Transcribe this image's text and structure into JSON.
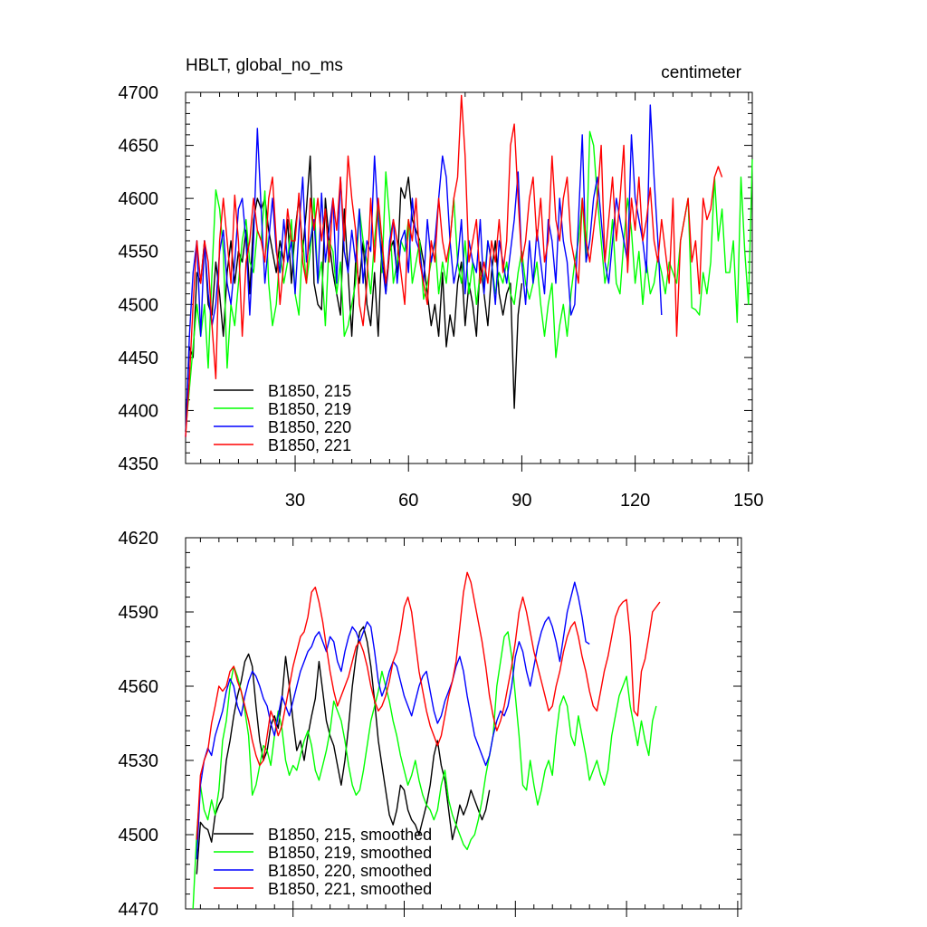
{
  "chart_data": [
    {
      "type": "line",
      "title": "HBLT, global_no_ms",
      "units": "centimeter",
      "xlim": [
        1,
        151
      ],
      "ylim": [
        4350,
        4700
      ],
      "yticks": [
        4350,
        4400,
        4450,
        4500,
        4550,
        4600,
        4650,
        4700
      ],
      "xticks": [
        30,
        60,
        90,
        120,
        150
      ],
      "legend_position": "bottom-left",
      "series": [
        {
          "name": "B1850, 215",
          "color": "#000000",
          "start": 1,
          "values": [
            4380,
            4460,
            4450,
            4530,
            4520,
            4560,
            4500,
            4490,
            4540,
            4510,
            4470,
            4530,
            4560,
            4520,
            4550,
            4540,
            4570,
            4510,
            4580,
            4600,
            4590,
            4600,
            4570,
            4550,
            4530,
            4560,
            4540,
            4580,
            4520,
            4570,
            4600,
            4550,
            4590,
            4640,
            4520,
            4500,
            4495,
            4600,
            4560,
            4530,
            4510,
            4490,
            4590,
            4530,
            4470,
            4540,
            4520,
            4560,
            4500,
            4480,
            4530,
            4470,
            4560,
            4510,
            4550,
            4560,
            4530,
            4610,
            4600,
            4620,
            4580,
            4570,
            4560,
            4540,
            4510,
            4480,
            4500,
            4470,
            4530,
            4460,
            4490,
            4470,
            4520,
            4540,
            4480,
            4520,
            4500,
            4470,
            4540,
            4510,
            4480,
            4530,
            4560,
            4510,
            4490,
            4510,
            4520,
            4402,
            4490,
            4520
          ]
        },
        {
          "name": "B1850, 219",
          "color": "#00ff00",
          "start": 1,
          "values": [
            4380,
            4420,
            4460,
            4500,
            4470,
            4500,
            4440,
            4530,
            4608,
            4590,
            4550,
            4440,
            4500,
            4480,
            4520,
            4560,
            4580,
            4540,
            4530,
            4570,
            4560,
            4607,
            4520,
            4480,
            4500,
            4550,
            4520,
            4540,
            4580,
            4510,
            4490,
            4560,
            4520,
            4550,
            4600,
            4520,
            4540,
            4480,
            4560,
            4550,
            4510,
            4540,
            4470,
            4480,
            4500,
            4520,
            4590,
            4560,
            4540,
            4510,
            4560,
            4600,
            4530,
            4625,
            4580,
            4520,
            4540,
            4560,
            4550,
            4580,
            4520,
            4540,
            4560,
            4505,
            4520,
            4540,
            4560,
            4510,
            4540,
            4520,
            4560,
            4600,
            4540,
            4520,
            4560,
            4510,
            4540,
            4500,
            4530,
            4520,
            4560,
            4540,
            4510,
            4530,
            4520,
            4540,
            4510,
            4500,
            4530,
            4550,
            4520,
            4505,
            4520,
            4540,
            4500,
            4470,
            4500,
            4520,
            4450,
            4480,
            4500,
            4470,
            4510,
            4540,
            4560,
            4600,
            4540,
            4663,
            4650,
            4600,
            4560,
            4520,
            4540,
            4580,
            4520,
            4510,
            4560,
            4600,
            4570,
            4520,
            4550,
            4500,
            4540,
            4510,
            4520,
            4545,
            4530,
            4510,
            4540,
            4530,
            4520,
            4560,
            4580,
            4600,
            4497,
            4495,
            4490,
            4530,
            4510,
            4540,
            4620,
            4560,
            4590,
            4530,
            4530,
            4560,
            4483,
            4620,
            4550,
            4500,
            4637
          ]
        },
        {
          "name": "B1850, 220",
          "color": "#0000ff",
          "start": 1,
          "values": [
            4375,
            4470,
            4530,
            4560,
            4470,
            4560,
            4510,
            4480,
            4500,
            4550,
            4570,
            4520,
            4500,
            4540,
            4590,
            4600,
            4560,
            4490,
            4560,
            4666,
            4590,
            4520,
            4560,
            4600,
            4550,
            4530,
            4580,
            4540,
            4560,
            4510,
            4570,
            4620,
            4540,
            4560,
            4580,
            4520,
            4605,
            4540,
            4570,
            4600,
            4520,
            4620,
            4550,
            4530,
            4570,
            4540,
            4590,
            4520,
            4560,
            4550,
            4640,
            4580,
            4540,
            4510,
            4560,
            4580,
            4520,
            4560,
            4570,
            4530,
            4600,
            4560,
            4550,
            4520,
            4580,
            4540,
            4560,
            4600,
            4640,
            4620,
            4560,
            4520,
            4540,
            4580,
            4510,
            4560,
            4540,
            4530,
            4580,
            4510,
            4560,
            4540,
            4500,
            4560,
            4540,
            4520,
            4550,
            4580,
            4625,
            4540,
            4500,
            4560,
            4520,
            4570,
            4540,
            4510,
            4580,
            4560,
            4520,
            4600,
            4560,
            4540,
            4490,
            4500,
            4580,
            4660,
            4540,
            4560,
            4600,
            4620,
            4580,
            4540,
            4520,
            4560,
            4600,
            4580,
            4560,
            4540,
            4660,
            4600,
            4580,
            4560,
            4530,
            4688,
            4620,
            4560,
            4490
          ]
        },
        {
          "name": "B1850, 221",
          "color": "#ff0000",
          "start": 1,
          "values": [
            4375,
            4430,
            4500,
            4560,
            4520,
            4560,
            4540,
            4480,
            4430,
            4560,
            4600,
            4560,
            4520,
            4603,
            4560,
            4470,
            4540,
            4560,
            4600,
            4570,
            4560,
            4540,
            4600,
            4620,
            4560,
            4500,
            4540,
            4590,
            4560,
            4560,
            4605,
            4540,
            4520,
            4600,
            4570,
            4600,
            4560,
            4590,
            4540,
            4600,
            4570,
            4620,
            4560,
            4640,
            4600,
            4570,
            4500,
            4480,
            4520,
            4600,
            4540,
            4600,
            4560,
            4520,
            4550,
            4580,
            4560,
            4530,
            4500,
            4580,
            4560,
            4600,
            4540,
            4520,
            4500,
            4560,
            4540,
            4600,
            4560,
            4540,
            4560,
            4600,
            4620,
            4697,
            4640,
            4540,
            4560,
            4580,
            4520,
            4540,
            4520,
            4560,
            4540,
            4580,
            4530,
            4560,
            4650,
            4670,
            4600,
            4540,
            4560,
            4600,
            4620,
            4560,
            4600,
            4540,
            4560,
            4640,
            4580,
            4560,
            4600,
            4620,
            4560,
            4540,
            4520,
            4600,
            4560,
            4540,
            4570,
            4600,
            4650,
            4540,
            4580,
            4620,
            4560,
            4600,
            4650,
            4530,
            4600,
            4570,
            4620,
            4560,
            4580,
            4610,
            4560,
            4540,
            4580,
            4550,
            4520,
            4600,
            4470,
            4560,
            4580,
            4600,
            4540,
            4560,
            4510,
            4600,
            4580,
            4590,
            4620,
            4630,
            4620
          ]
        }
      ]
    },
    {
      "type": "line",
      "title": "",
      "xlim": [
        1,
        151
      ],
      "ylim": [
        4470,
        4620
      ],
      "yticks": [
        4470,
        4500,
        4530,
        4560,
        4590,
        4620
      ],
      "xticks": [
        30,
        60,
        90,
        120,
        150
      ],
      "legend_position": "bottom-left",
      "series": [
        {
          "name": "B1850, 215, smoothed",
          "color": "#000000",
          "start": 4,
          "values": [
            4484,
            4505,
            4503,
            4502,
            4497,
            4508,
            4512,
            4515,
            4530,
            4538,
            4548,
            4556,
            4562,
            4570,
            4573,
            4568,
            4552,
            4538,
            4530,
            4534,
            4544,
            4548,
            4543,
            4555,
            4572,
            4560,
            4546,
            4534,
            4538,
            4530,
            4540,
            4548,
            4555,
            4570,
            4558,
            4546,
            4540,
            4536,
            4528,
            4520,
            4530,
            4544,
            4560,
            4572,
            4582,
            4584,
            4578,
            4568,
            4554,
            4538,
            4528,
            4518,
            4508,
            4504,
            4510,
            4520,
            4518,
            4510,
            4506,
            4504,
            4500,
            4506,
            4512,
            4520,
            4532,
            4538,
            4528,
            4522,
            4510,
            4498,
            4504,
            4512,
            4508,
            4512,
            4518,
            4514,
            4510,
            4506,
            4510,
            4518
          ]
        },
        {
          "name": "B1850, 219, smoothed",
          "color": "#00ff00",
          "start": 3,
          "values": [
            4470,
            4500,
            4520,
            4510,
            4506,
            4514,
            4508,
            4518,
            4538,
            4546,
            4560,
            4568,
            4564,
            4558,
            4550,
            4540,
            4516,
            4520,
            4528,
            4536,
            4534,
            4528,
            4540,
            4550,
            4543,
            4530,
            4524,
            4528,
            4526,
            4532,
            4538,
            4542,
            4536,
            4526,
            4522,
            4528,
            4534,
            4542,
            4554,
            4550,
            4546,
            4538,
            4528,
            4520,
            4516,
            4518,
            4526,
            4536,
            4546,
            4552,
            4558,
            4566,
            4560,
            4554,
            4546,
            4540,
            4532,
            4526,
            4520,
            4524,
            4530,
            4522,
            4516,
            4512,
            4510,
            4506,
            4510,
            4520,
            4526,
            4514,
            4508,
            4504,
            4500,
            4496,
            4494,
            4498,
            4500,
            4506,
            4514,
            4524,
            4532,
            4540,
            4560,
            4570,
            4580,
            4582,
            4572,
            4556,
            4540,
            4520,
            4518,
            4530,
            4520,
            4512,
            4518,
            4526,
            4530,
            4524,
            4540,
            4552,
            4556,
            4552,
            4540,
            4536,
            4548,
            4540,
            4532,
            4522,
            4526,
            4530,
            4524,
            4520,
            4526,
            4540,
            4548,
            4556,
            4560,
            4564,
            4552,
            4544,
            4536,
            4546,
            4538,
            4532,
            4546,
            4552
          ]
        },
        {
          "name": "B1850, 220, smoothed",
          "color": "#0000ff",
          "start": 4,
          "values": [
            4490,
            4520,
            4530,
            4535,
            4532,
            4540,
            4545,
            4550,
            4558,
            4563,
            4560,
            4552,
            4548,
            4556,
            4562,
            4566,
            4564,
            4560,
            4555,
            4552,
            4545,
            4540,
            4548,
            4556,
            4552,
            4548,
            4554,
            4560,
            4566,
            4570,
            4574,
            4576,
            4580,
            4582,
            4578,
            4574,
            4580,
            4578,
            4570,
            4566,
            4574,
            4580,
            4584,
            4582,
            4578,
            4582,
            4586,
            4584,
            4574,
            4562,
            4556,
            4560,
            4566,
            4570,
            4568,
            4562,
            4556,
            4552,
            4548,
            4554,
            4560,
            4564,
            4566,
            4558,
            4550,
            4545,
            4548,
            4554,
            4558,
            4562,
            4568,
            4572,
            4566,
            4556,
            4548,
            4540,
            4536,
            4532,
            4528,
            4532,
            4540,
            4546,
            4550,
            4548,
            4552,
            4560,
            4572,
            4578,
            4574,
            4566,
            4560,
            4568,
            4576,
            4582,
            4586,
            4588,
            4584,
            4578,
            4570,
            4580,
            4590,
            4596,
            4602,
            4596,
            4588,
            4578,
            4577
          ]
        },
        {
          "name": "B1850, 221, smoothed",
          "color": "#ff0000",
          "start": 4,
          "values": [
            4498,
            4524,
            4530,
            4534,
            4545,
            4552,
            4560,
            4558,
            4560,
            4566,
            4568,
            4562,
            4558,
            4552,
            4546,
            4538,
            4532,
            4528,
            4530,
            4540,
            4550,
            4546,
            4540,
            4544,
            4552,
            4560,
            4568,
            4574,
            4580,
            4582,
            4588,
            4598,
            4600,
            4594,
            4586,
            4576,
            4566,
            4558,
            4552,
            4556,
            4560,
            4564,
            4570,
            4576,
            4578,
            4574,
            4568,
            4560,
            4554,
            4550,
            4552,
            4556,
            4562,
            4570,
            4574,
            4582,
            4592,
            4596,
            4590,
            4578,
            4566,
            4558,
            4550,
            4544,
            4540,
            4536,
            4540,
            4548,
            4556,
            4562,
            4570,
            4584,
            4598,
            4606,
            4602,
            4594,
            4586,
            4578,
            4568,
            4556,
            4548,
            4542,
            4546,
            4552,
            4560,
            4568,
            4578,
            4590,
            4596,
            4590,
            4582,
            4574,
            4568,
            4562,
            4556,
            4550,
            4552,
            4560,
            4566,
            4574,
            4580,
            4584,
            4586,
            4580,
            4572,
            4566,
            4558,
            4552,
            4550,
            4558,
            4566,
            4572,
            4580,
            4588,
            4592,
            4594,
            4595,
            4580,
            4550,
            4548,
            4566,
            4571,
            4580,
            4590,
            4592,
            4594
          ]
        }
      ]
    }
  ]
}
